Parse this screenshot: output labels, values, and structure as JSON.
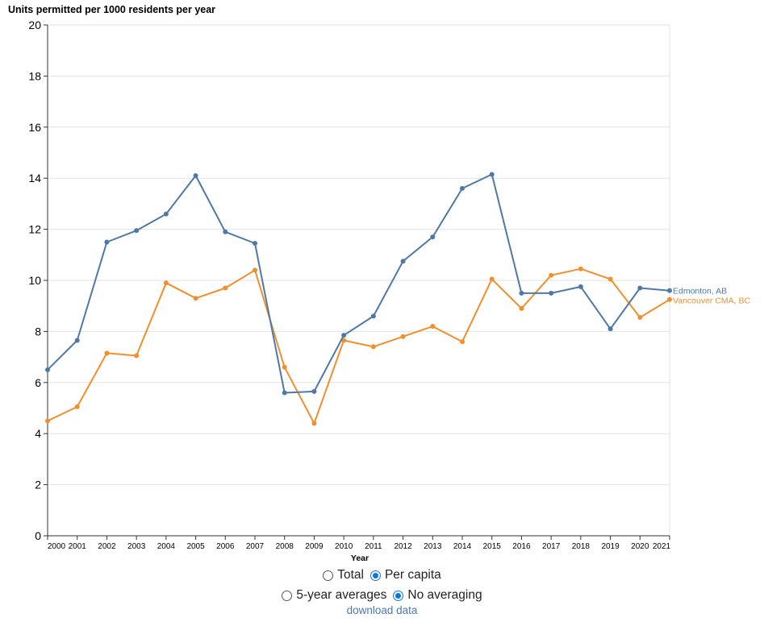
{
  "chart_data": {
    "type": "line",
    "title": "Units permitted per 1000 residents per year",
    "xlabel": "Year",
    "ylabel": "",
    "ylim": [
      0,
      20
    ],
    "yticks": [
      "0",
      "2",
      "4",
      "6",
      "8",
      "10",
      "12",
      "14",
      "16",
      "18",
      "20"
    ],
    "x": [
      "2000",
      "2001",
      "2002",
      "2003",
      "2004",
      "2005",
      "2006",
      "2007",
      "2008",
      "2009",
      "2010",
      "2011",
      "2012",
      "2013",
      "2014",
      "2015",
      "2016",
      "2017",
      "2018",
      "2019",
      "2020",
      "2021"
    ],
    "grid": true,
    "legend": "end-of-line labels",
    "series": [
      {
        "name": "Edmonton, AB",
        "color": "#4e79a7",
        "values": [
          6.5,
          7.65,
          11.5,
          11.95,
          12.6,
          14.1,
          11.9,
          11.45,
          5.6,
          5.65,
          7.85,
          8.6,
          10.75,
          11.7,
          13.6,
          14.15,
          9.5,
          9.5,
          9.75,
          8.1,
          9.7,
          9.6
        ]
      },
      {
        "name": "Vancouver CMA, BC",
        "color": "#f28e2b",
        "values": [
          4.5,
          5.05,
          7.15,
          7.05,
          9.9,
          9.3,
          9.7,
          10.4,
          6.6,
          4.4,
          7.65,
          7.4,
          7.8,
          8.2,
          7.6,
          10.05,
          8.9,
          10.2,
          10.45,
          10.05,
          8.55,
          9.25
        ]
      }
    ]
  },
  "controls": {
    "measure": {
      "options": [
        "Total",
        "Per capita"
      ],
      "selected": "Per capita"
    },
    "averaging": {
      "options": [
        "5-year averages",
        "No averaging"
      ],
      "selected": "No averaging"
    },
    "download_label": "download data"
  },
  "colors": {
    "axis": "#333333",
    "grid": "#e2e2e2",
    "radio_accent": "#0b74e4",
    "link": "#4a78b4"
  }
}
